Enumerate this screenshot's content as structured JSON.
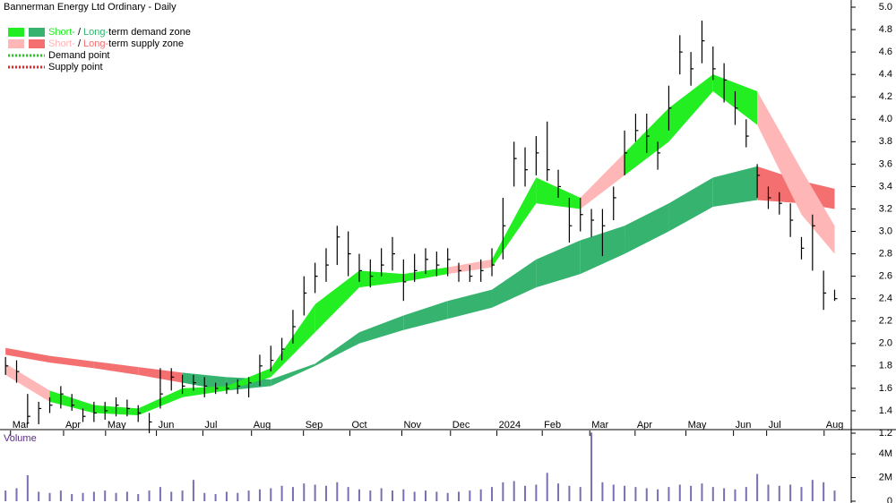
{
  "chart_data": {
    "type": "ohlc",
    "title": "Bannerman Energy Ltd Ordinary - Daily",
    "legend": {
      "demand": [
        "Short-",
        "/",
        "Long-",
        "term demand zone"
      ],
      "supply": [
        "Short-",
        "/",
        "Long-",
        "term supply zone"
      ],
      "demand_point": "Demand point",
      "supply_point": "Supply point"
    },
    "colors": {
      "bar": "#000000",
      "short_demand": "#22ee22",
      "long_demand": "#36b36f",
      "short_supply": "#ffb6b6",
      "long_supply": "#f47070",
      "demand_point": "#22cc22",
      "supply_point": "#ee2222",
      "volume": "#7a6fb0",
      "volume_label": "#5a2a8a"
    },
    "xlim": [
      -0.5,
      76.5
    ],
    "xticks": [
      {
        "value": 1.1,
        "label": "Mar"
      },
      {
        "value": 5.9,
        "label": "Apr"
      },
      {
        "value": 9.7,
        "label": "May"
      },
      {
        "value": 14.3,
        "label": "Jun"
      },
      {
        "value": 18.5,
        "label": "Jul"
      },
      {
        "value": 22.9,
        "label": "Aug"
      },
      {
        "value": 27.6,
        "label": "Sep"
      },
      {
        "value": 31.8,
        "label": "Oct"
      },
      {
        "value": 36.5,
        "label": "Nov"
      },
      {
        "value": 40.9,
        "label": "Dec"
      },
      {
        "value": 45.1,
        "label": "2024"
      },
      {
        "value": 49.2,
        "label": "Feb"
      },
      {
        "value": 53.5,
        "label": "Mar"
      },
      {
        "value": 57.6,
        "label": "Apr"
      },
      {
        "value": 62.2,
        "label": "May"
      },
      {
        "value": 66.5,
        "label": "Jun"
      },
      {
        "value": 69.5,
        "label": "Jul"
      },
      {
        "value": 74.7,
        "label": "Aug"
      }
    ],
    "ylim": [
      1.176,
      5.064
    ],
    "yticks": [
      1.2,
      1.4,
      1.6,
      1.8,
      {
        "value": 2,
        "label": "2.0"
      },
      2.2,
      2.4,
      2.6,
      2.8,
      {
        "value": 3,
        "label": "3.0"
      },
      3.2,
      3.4,
      3.6,
      3.8,
      {
        "value": 4,
        "label": "4.0"
      },
      4.2,
      4.4,
      4.6,
      4.8,
      {
        "value": 5,
        "label": "5.0"
      }
    ],
    "high": [
      1.88,
      1.85,
      1.55,
      1.48,
      1.52,
      1.62,
      1.55,
      1.42,
      1.48,
      1.48,
      1.52,
      1.5,
      1.45,
      1.38,
      1.78,
      1.78,
      1.72,
      1.72,
      1.7,
      1.65,
      1.65,
      1.68,
      1.7,
      1.9,
      1.98,
      2.05,
      2.3,
      2.6,
      2.72,
      2.85,
      3.05,
      3.0,
      2.8,
      2.75,
      2.85,
      2.95,
      2.75,
      2.8,
      2.85,
      2.82,
      2.85,
      2.72,
      2.7,
      2.75,
      2.85,
      3.3,
      3.8,
      3.75,
      3.85,
      3.98,
      3.55,
      3.3,
      3.3,
      3.2,
      3.2,
      3.4,
      3.9,
      4.05,
      4.05,
      3.8,
      4.3,
      4.75,
      4.6,
      4.88,
      4.65,
      4.5,
      4.25,
      4.0,
      3.6,
      3.4,
      3.35,
      3.25,
      2.95,
      3.15,
      2.65,
      2.48
    ],
    "low": [
      1.72,
      1.65,
      1.28,
      1.28,
      1.38,
      1.42,
      1.4,
      1.3,
      1.3,
      1.32,
      1.35,
      1.35,
      1.3,
      1.2,
      1.42,
      1.58,
      1.55,
      1.58,
      1.52,
      1.55,
      1.55,
      1.55,
      1.52,
      1.62,
      1.75,
      1.85,
      2.0,
      2.25,
      2.45,
      2.55,
      2.7,
      2.6,
      2.55,
      2.5,
      2.6,
      2.65,
      2.38,
      2.55,
      2.62,
      2.6,
      2.6,
      2.55,
      2.55,
      2.55,
      2.6,
      2.75,
      3.4,
      3.4,
      3.5,
      3.45,
      3.3,
      2.9,
      3.0,
      2.95,
      2.78,
      3.1,
      3.5,
      3.8,
      3.7,
      3.55,
      3.9,
      4.4,
      4.3,
      4.5,
      4.35,
      4.15,
      3.95,
      3.75,
      3.3,
      3.2,
      3.15,
      2.95,
      2.75,
      2.65,
      2.3,
      2.38
    ],
    "close": [
      1.8,
      1.75,
      1.35,
      1.42,
      1.45,
      1.55,
      1.45,
      1.35,
      1.38,
      1.4,
      1.45,
      1.42,
      1.38,
      1.3,
      1.55,
      1.7,
      1.62,
      1.65,
      1.62,
      1.6,
      1.6,
      1.62,
      1.65,
      1.8,
      1.85,
      1.95,
      2.15,
      2.45,
      2.6,
      2.7,
      2.95,
      2.8,
      2.65,
      2.6,
      2.7,
      2.8,
      2.55,
      2.65,
      2.75,
      2.7,
      2.75,
      2.65,
      2.6,
      2.65,
      2.7,
      3.05,
      3.65,
      3.55,
      3.7,
      3.55,
      3.4,
      3.05,
      3.15,
      3.1,
      3.05,
      3.3,
      3.7,
      3.9,
      3.85,
      3.7,
      4.1,
      4.6,
      4.45,
      4.7,
      4.45,
      4.35,
      4.1,
      3.85,
      3.5,
      3.3,
      3.25,
      3.1,
      2.85,
      3.05,
      2.45,
      2.4
    ],
    "band_x": [
      0,
      4,
      8,
      12,
      16,
      20,
      24,
      28,
      32,
      36,
      40,
      44,
      48,
      52,
      56,
      60,
      64,
      68,
      72,
      75
    ],
    "short_lower": [
      1.72,
      1.48,
      1.38,
      1.36,
      1.52,
      1.58,
      1.7,
      2.1,
      2.5,
      2.55,
      2.62,
      2.68,
      3.25,
      3.2,
      3.5,
      3.8,
      4.25,
      3.95,
      3.15,
      2.8
    ],
    "short_upper": [
      1.82,
      1.58,
      1.45,
      1.42,
      1.6,
      1.62,
      1.78,
      2.35,
      2.65,
      2.62,
      2.68,
      2.75,
      3.48,
      3.3,
      3.7,
      4.1,
      4.4,
      4.25,
      3.55,
      3.05
    ],
    "long_lower": [
      1.9,
      1.83,
      1.78,
      1.72,
      1.65,
      1.58,
      1.62,
      1.8,
      2.0,
      2.12,
      2.22,
      2.32,
      2.5,
      2.62,
      2.8,
      3.0,
      3.22,
      3.28,
      3.25,
      3.2
    ],
    "long_upper": [
      1.96,
      1.89,
      1.84,
      1.79,
      1.74,
      1.7,
      1.68,
      1.82,
      2.1,
      2.25,
      2.38,
      2.48,
      2.75,
      2.92,
      3.05,
      3.25,
      3.48,
      3.58,
      3.45,
      3.38
    ],
    "volume_title": "Volume",
    "volume": [
      900000,
      1100000,
      2200000,
      800000,
      700000,
      900000,
      600000,
      700000,
      800000,
      900000,
      700000,
      800000,
      600000,
      900000,
      1200000,
      800000,
      900000,
      1800000,
      700000,
      600000,
      800000,
      700000,
      900000,
      1000000,
      1100000,
      1300000,
      1200000,
      1500000,
      1400000,
      1300000,
      1600000,
      1200000,
      1000000,
      900000,
      1100000,
      900000,
      1000000,
      800000,
      900000,
      800000,
      700000,
      800000,
      900000,
      1000000,
      1200000,
      1600000,
      1700000,
      1300000,
      1400000,
      2400000,
      1500000,
      1300000,
      1200000,
      5800000,
      1600000,
      1400000,
      1300000,
      1200000,
      1100000,
      1000000,
      1200000,
      1400000,
      1300000,
      1500000,
      1200000,
      1100000,
      1000000,
      1200000,
      2300000,
      1400000,
      1300000,
      1400000,
      1200000,
      1800000,
      1600000,
      900000
    ],
    "vlim": [
      0,
      5900000
    ],
    "vticks": [
      0,
      {
        "value": 2000000,
        "label": "2M"
      },
      {
        "value": 4000000,
        "label": "4M"
      }
    ]
  }
}
